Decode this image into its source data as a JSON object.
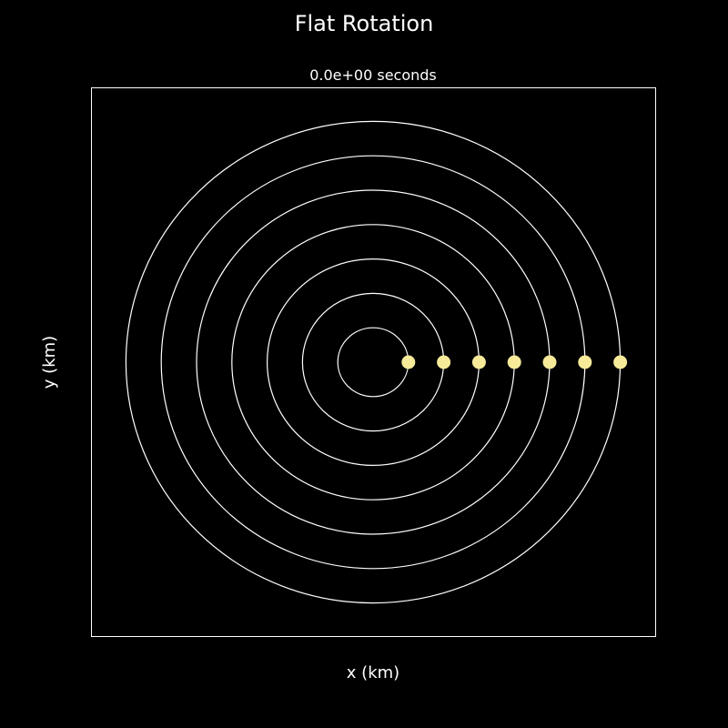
{
  "chart_data": {
    "type": "scatter",
    "title": "Flat Rotation",
    "subtitle": "0.0e+00 seconds",
    "xlabel": "x (km)",
    "ylabel": "y (km)",
    "xlim": [
      -8,
      8
    ],
    "ylim": [
      -8,
      8
    ],
    "grid": false,
    "ticks_visible": false,
    "colors": {
      "background": "#000000",
      "orbit": "#ffffff",
      "point": "#f7eb99"
    },
    "series": [
      {
        "orbits": [
          {
            "r": 1
          },
          {
            "r": 2
          },
          {
            "r": 3
          },
          {
            "r": 4
          },
          {
            "r": 5
          },
          {
            "r": 6
          },
          {
            "r": 7
          }
        ],
        "points": [
          {
            "x": 1,
            "y": 0
          },
          {
            "x": 2,
            "y": 0
          },
          {
            "x": 3,
            "y": 0
          },
          {
            "x": 4,
            "y": 0
          },
          {
            "x": 5,
            "y": 0
          },
          {
            "x": 6,
            "y": 0
          },
          {
            "x": 7,
            "y": 0
          }
        ]
      }
    ]
  }
}
